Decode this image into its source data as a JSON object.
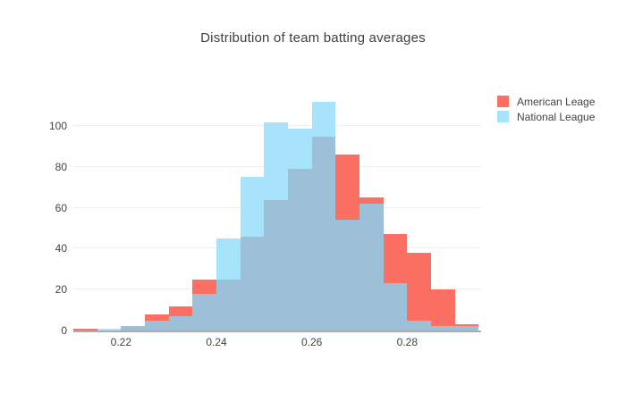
{
  "title": "Distribution of team batting averages",
  "legend": {
    "items": [
      {
        "label": "American Leage",
        "color": "#FC7064"
      },
      {
        "label": "National League",
        "color": "#A7E3FB"
      }
    ]
  },
  "chart_data": {
    "type": "histogram-overlay",
    "title": "Distribution of team batting averages",
    "xlabel": "",
    "ylabel": "",
    "bin_width": 0.005,
    "bin_edges": [
      0.21,
      0.215,
      0.22,
      0.225,
      0.23,
      0.235,
      0.24,
      0.245,
      0.25,
      0.255,
      0.26,
      0.265,
      0.27,
      0.275,
      0.28,
      0.285,
      0.29,
      0.295
    ],
    "series": [
      {
        "name": "American Leage",
        "color": "#FC7064",
        "values": [
          1,
          0,
          2,
          8,
          12,
          25,
          25,
          46,
          64,
          79,
          95,
          86,
          65,
          47,
          38,
          20,
          3
        ]
      },
      {
        "name": "National League",
        "color": "#A7E3FB",
        "values": [
          0,
          1,
          2,
          5,
          7,
          18,
          45,
          75,
          102,
          99,
          112,
          54,
          62,
          23,
          5,
          2,
          2
        ]
      }
    ],
    "overlap_color": "#9DC0D9",
    "x_range": [
      0.21,
      0.2955
    ],
    "y_range": [
      0,
      118
    ],
    "x_ticks": {
      "values": [
        0.22,
        0.24,
        0.26,
        0.28
      ],
      "labels": [
        "0.22",
        "0.24",
        "0.26",
        "0.28"
      ]
    },
    "y_ticks": {
      "values": [
        0,
        20,
        40,
        60,
        80,
        100
      ],
      "labels": [
        "0",
        "20",
        "40",
        "60",
        "80",
        "100"
      ]
    },
    "grid": true,
    "legend_position": "right"
  },
  "colors": {
    "grid": "#EDEDED",
    "axis_line": "#ADADAD",
    "text": "#444444",
    "background": "#FFFFFF"
  }
}
